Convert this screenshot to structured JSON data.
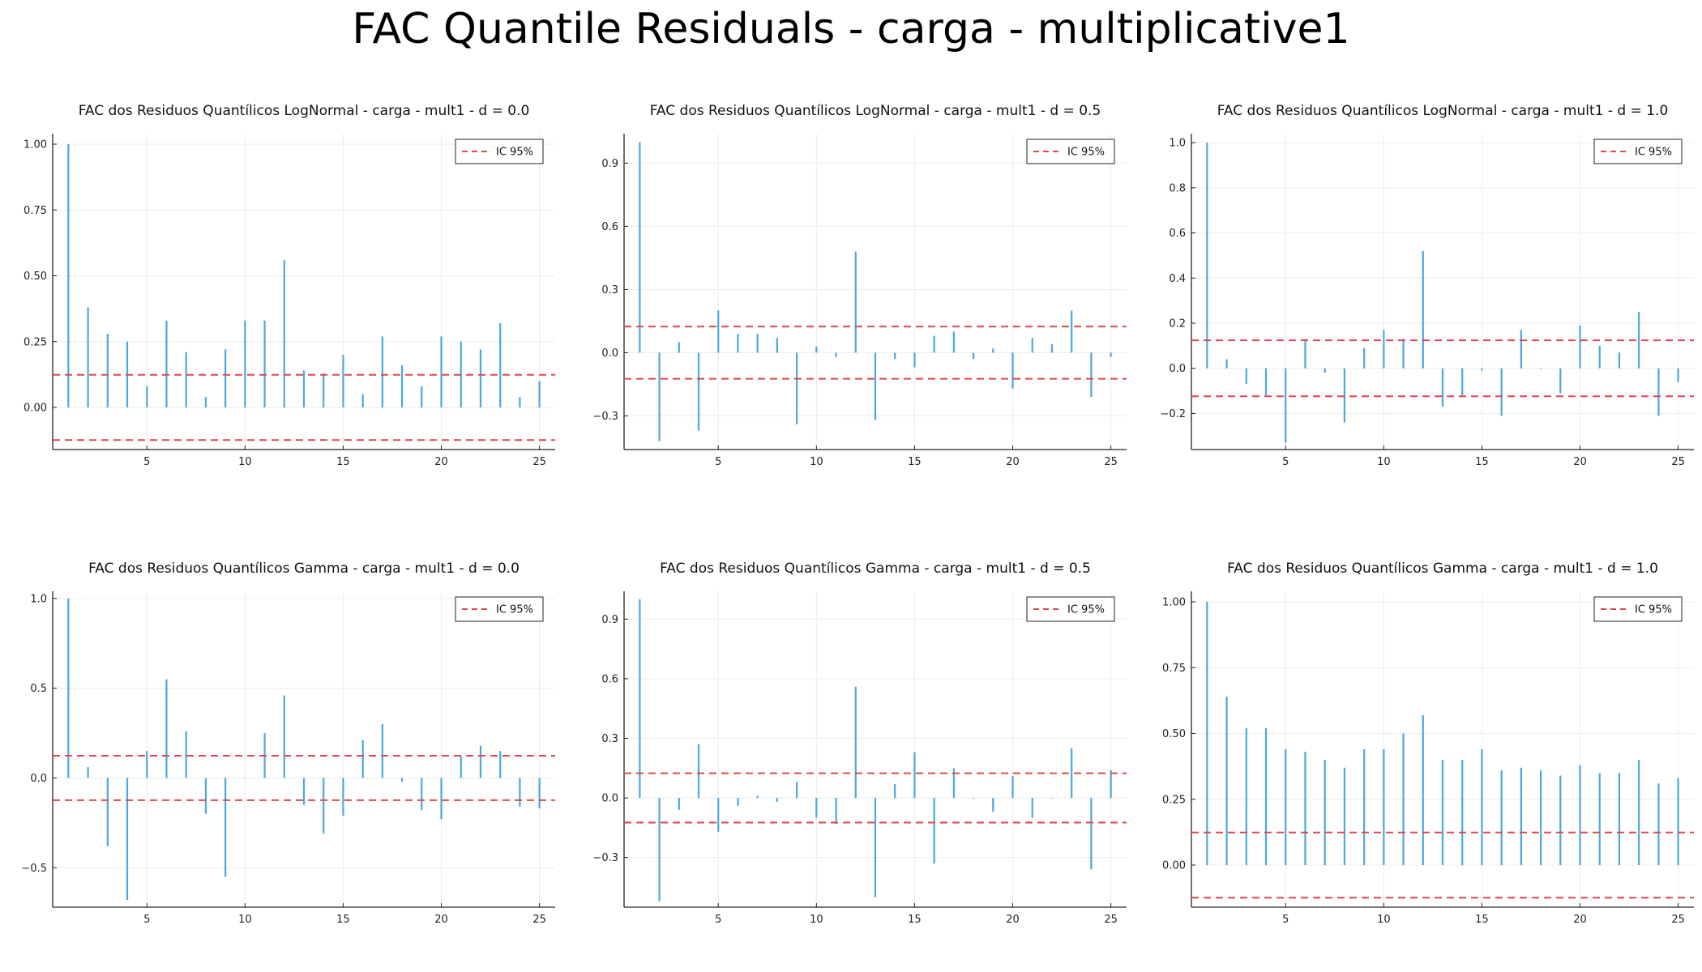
{
  "figure": {
    "title": "FAC Quantile Residuals - carga - multiplicative1"
  },
  "colors": {
    "bar": "#4aa8e0",
    "ci": "#e0474c",
    "grid": "#ececec",
    "axis": "#222222"
  },
  "chart_data": [
    {
      "type": "bar",
      "title": "FAC dos Residuos Quantílicos LogNormal - carga - mult1 - d = 0.0",
      "legend": {
        "label": "IC 95%",
        "position": "top-right"
      },
      "ci": 0.124,
      "xlim": [
        0.2,
        25.8
      ],
      "ylim": [
        -0.16,
        1.04
      ],
      "xticks": [
        5,
        10,
        15,
        20,
        25
      ],
      "yticks": [
        0.0,
        0.25,
        0.5,
        0.75,
        1.0
      ],
      "ytick_labels": [
        "0.00",
        "0.25",
        "0.50",
        "0.75",
        "1.00"
      ],
      "lags": [
        1,
        2,
        3,
        4,
        5,
        6,
        7,
        8,
        9,
        10,
        11,
        12,
        13,
        14,
        15,
        16,
        17,
        18,
        19,
        20,
        21,
        22,
        23,
        24,
        25
      ],
      "values": [
        1.0,
        0.38,
        0.28,
        0.25,
        0.08,
        0.33,
        0.21,
        0.04,
        0.22,
        0.33,
        0.33,
        0.56,
        0.14,
        0.13,
        0.2,
        0.05,
        0.27,
        0.16,
        0.08,
        0.27,
        0.25,
        0.22,
        0.32,
        0.04,
        0.1
      ]
    },
    {
      "type": "bar",
      "title": "FAC dos Residuos Quantílicos LogNormal - carga - mult1 - d = 0.5",
      "legend": {
        "label": "IC 95%",
        "position": "top-right"
      },
      "ci": 0.124,
      "xlim": [
        0.2,
        25.8
      ],
      "ylim": [
        -0.46,
        1.04
      ],
      "xticks": [
        5,
        10,
        15,
        20,
        25
      ],
      "yticks": [
        -0.3,
        0.0,
        0.3,
        0.6,
        0.9
      ],
      "ytick_labels": [
        "−0.3",
        "0.0",
        "0.3",
        "0.6",
        "0.9"
      ],
      "lags": [
        1,
        2,
        3,
        4,
        5,
        6,
        7,
        8,
        9,
        10,
        11,
        12,
        13,
        14,
        15,
        16,
        17,
        18,
        19,
        20,
        21,
        22,
        23,
        24,
        25
      ],
      "values": [
        1.0,
        -0.42,
        0.05,
        -0.37,
        0.2,
        0.09,
        0.09,
        0.07,
        -0.34,
        0.03,
        -0.02,
        0.48,
        -0.32,
        -0.03,
        -0.07,
        0.08,
        0.1,
        -0.03,
        0.02,
        -0.17,
        0.07,
        0.04,
        0.2,
        -0.21,
        -0.02
      ]
    },
    {
      "type": "bar",
      "title": "FAC dos Residuos Quantílicos LogNormal - carga - mult1 - d = 1.0",
      "legend": {
        "label": "IC 95%",
        "position": "top-right"
      },
      "ci": 0.124,
      "xlim": [
        0.2,
        25.8
      ],
      "ylim": [
        -0.36,
        1.04
      ],
      "xticks": [
        5,
        10,
        15,
        20,
        25
      ],
      "yticks": [
        -0.2,
        0.0,
        0.2,
        0.4,
        0.6,
        0.8,
        1.0
      ],
      "ytick_labels": [
        "−0.2",
        "0.0",
        "0.2",
        "0.4",
        "0.6",
        "0.8",
        "1.0"
      ],
      "lags": [
        1,
        2,
        3,
        4,
        5,
        6,
        7,
        8,
        9,
        10,
        11,
        12,
        13,
        14,
        15,
        16,
        17,
        18,
        19,
        20,
        21,
        22,
        23,
        24,
        25
      ],
      "values": [
        1.0,
        0.04,
        -0.07,
        -0.12,
        -0.33,
        0.13,
        -0.02,
        -0.24,
        0.09,
        0.17,
        0.13,
        0.52,
        -0.17,
        -0.12,
        -0.01,
        -0.21,
        0.17,
        0.0,
        -0.11,
        0.19,
        0.1,
        0.07,
        0.25,
        -0.21,
        -0.06
      ]
    },
    {
      "type": "bar",
      "title": "FAC dos Residuos Quantílicos Gamma - carga - mult1 - d = 0.0",
      "legend": {
        "label": "IC 95%",
        "position": "top-right"
      },
      "ci": 0.124,
      "xlim": [
        0.2,
        25.8
      ],
      "ylim": [
        -0.72,
        1.04
      ],
      "xticks": [
        5,
        10,
        15,
        20,
        25
      ],
      "yticks": [
        -0.5,
        0.0,
        0.5,
        1.0
      ],
      "ytick_labels": [
        "−0.5",
        "0.0",
        "0.5",
        "1.0"
      ],
      "lags": [
        1,
        2,
        3,
        4,
        5,
        6,
        7,
        8,
        9,
        10,
        11,
        12,
        13,
        14,
        15,
        16,
        17,
        18,
        19,
        20,
        21,
        22,
        23,
        24,
        25
      ],
      "values": [
        1.0,
        0.06,
        -0.38,
        -0.68,
        0.15,
        0.55,
        0.26,
        -0.2,
        -0.55,
        0.0,
        0.25,
        0.46,
        -0.15,
        -0.31,
        -0.21,
        0.21,
        0.3,
        -0.02,
        -0.18,
        -0.23,
        0.12,
        0.18,
        0.15,
        -0.16,
        -0.17
      ]
    },
    {
      "type": "bar",
      "title": "FAC dos Residuos Quantílicos Gamma - carga - mult1 - d = 0.5",
      "legend": {
        "label": "IC 95%",
        "position": "top-right"
      },
      "ci": 0.124,
      "xlim": [
        0.2,
        25.8
      ],
      "ylim": [
        -0.55,
        1.04
      ],
      "xticks": [
        5,
        10,
        15,
        20,
        25
      ],
      "yticks": [
        -0.3,
        0.0,
        0.3,
        0.6,
        0.9
      ],
      "ytick_labels": [
        "−0.3",
        "0.0",
        "0.3",
        "0.6",
        "0.9"
      ],
      "lags": [
        1,
        2,
        3,
        4,
        5,
        6,
        7,
        8,
        9,
        10,
        11,
        12,
        13,
        14,
        15,
        16,
        17,
        18,
        19,
        20,
        21,
        22,
        23,
        24,
        25
      ],
      "values": [
        1.0,
        -0.52,
        -0.06,
        0.27,
        -0.17,
        -0.04,
        0.01,
        -0.02,
        0.08,
        -0.1,
        -0.13,
        0.56,
        -0.5,
        0.07,
        0.23,
        -0.33,
        0.15,
        0.0,
        -0.07,
        0.11,
        -0.1,
        0.0,
        0.25,
        -0.36,
        0.14
      ]
    },
    {
      "type": "bar",
      "title": "FAC dos Residuos Quantílicos Gamma - carga - mult1 - d = 1.0",
      "legend": {
        "label": "IC 95%",
        "position": "top-right"
      },
      "ci": 0.124,
      "xlim": [
        0.2,
        25.8
      ],
      "ylim": [
        -0.16,
        1.04
      ],
      "xticks": [
        5,
        10,
        15,
        20,
        25
      ],
      "yticks": [
        0.0,
        0.25,
        0.5,
        0.75,
        1.0
      ],
      "ytick_labels": [
        "0.00",
        "0.25",
        "0.50",
        "0.75",
        "1.00"
      ],
      "lags": [
        1,
        2,
        3,
        4,
        5,
        6,
        7,
        8,
        9,
        10,
        11,
        12,
        13,
        14,
        15,
        16,
        17,
        18,
        19,
        20,
        21,
        22,
        23,
        24,
        25
      ],
      "values": [
        1.0,
        0.64,
        0.52,
        0.52,
        0.44,
        0.43,
        0.4,
        0.37,
        0.44,
        0.44,
        0.5,
        0.57,
        0.4,
        0.4,
        0.44,
        0.36,
        0.37,
        0.36,
        0.34,
        0.38,
        0.35,
        0.35,
        0.4,
        0.31,
        0.33
      ]
    }
  ]
}
